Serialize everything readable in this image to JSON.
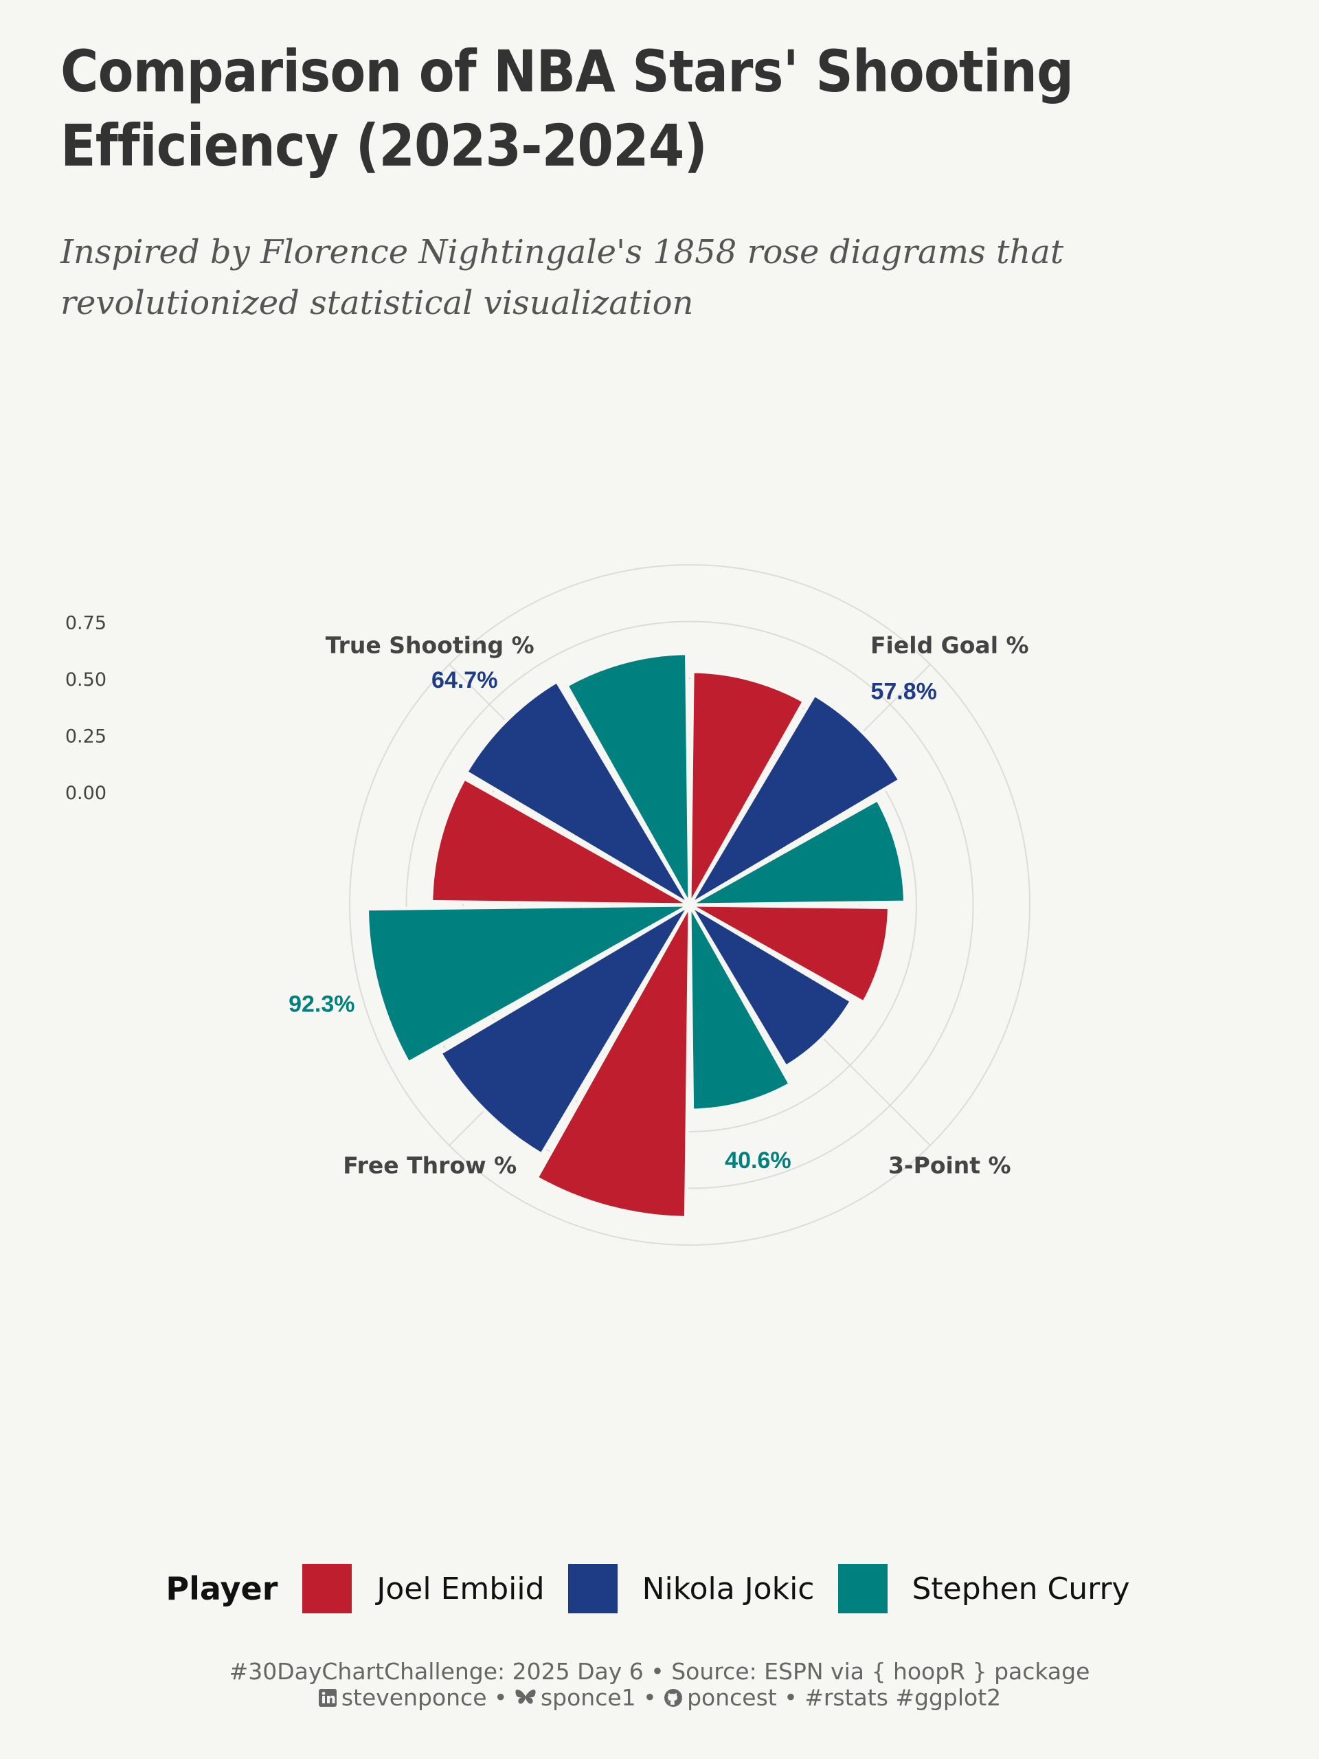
{
  "title": "Comparison of NBA Stars' Shooting Efficiency (2023-2024)",
  "subtitle": "Inspired by Florence Nightingale's 1858 rose diagrams that revolutionized statistical visualization",
  "chart_data": {
    "type": "bar",
    "coordinate_system": "polar",
    "categories": [
      "Field Goal %",
      "3-Point %",
      "Free Throw %",
      "True Shooting %"
    ],
    "series": [
      {
        "name": "Joel Embiid",
        "color": "#be1e2d",
        "values": [
          0.53,
          0.38,
          0.88,
          0.64
        ]
      },
      {
        "name": "Nikola Jokic",
        "color": "#1d3c85",
        "values": [
          0.578,
          0.33,
          0.78,
          0.647
        ]
      },
      {
        "name": "Stephen Curry",
        "color": "#00807f",
        "values": [
          0.45,
          0.406,
          0.923,
          0.61
        ]
      }
    ],
    "radial_ticks": [
      "0.00",
      "0.25",
      "0.50",
      "0.75"
    ],
    "radial_tick_values": [
      0,
      0.25,
      0.5,
      0.75
    ],
    "grid_values": [
      0.25,
      0.5,
      0.75,
      1.0
    ],
    "rlim": [
      0,
      1.0
    ],
    "annotations": [
      {
        "text": "57.8%",
        "category": "Field Goal %",
        "series": "Nikola Jokic"
      },
      {
        "text": "40.6%",
        "category": "3-Point %",
        "series": "Stephen Curry"
      },
      {
        "text": "92.3%",
        "category": "Free Throw %",
        "series": "Stephen Curry"
      },
      {
        "text": "64.7%",
        "category": "True Shooting %",
        "series": "Nikola Jokic"
      }
    ],
    "legend_position": "bottom",
    "grid": true
  },
  "legend": {
    "title": "Player",
    "items": [
      {
        "label": "Joel Embiid",
        "color": "#be1e2d"
      },
      {
        "label": "Nikola Jokic",
        "color": "#1d3c85"
      },
      {
        "label": "Stephen Curry",
        "color": "#00807f"
      }
    ]
  },
  "caption": {
    "line1": "#30DayChartChallenge:  2025 Day  6 • Source: ESPN  via { hoopR } package",
    "linkedin": "stevenponce",
    "bluesky": "sponce1",
    "github": "poncest",
    "tags": "#rstats #ggplot2",
    "sep": " • ",
    "icons": [
      "linkedin-icon",
      "bluesky-butterfly-icon",
      "github-icon"
    ]
  }
}
